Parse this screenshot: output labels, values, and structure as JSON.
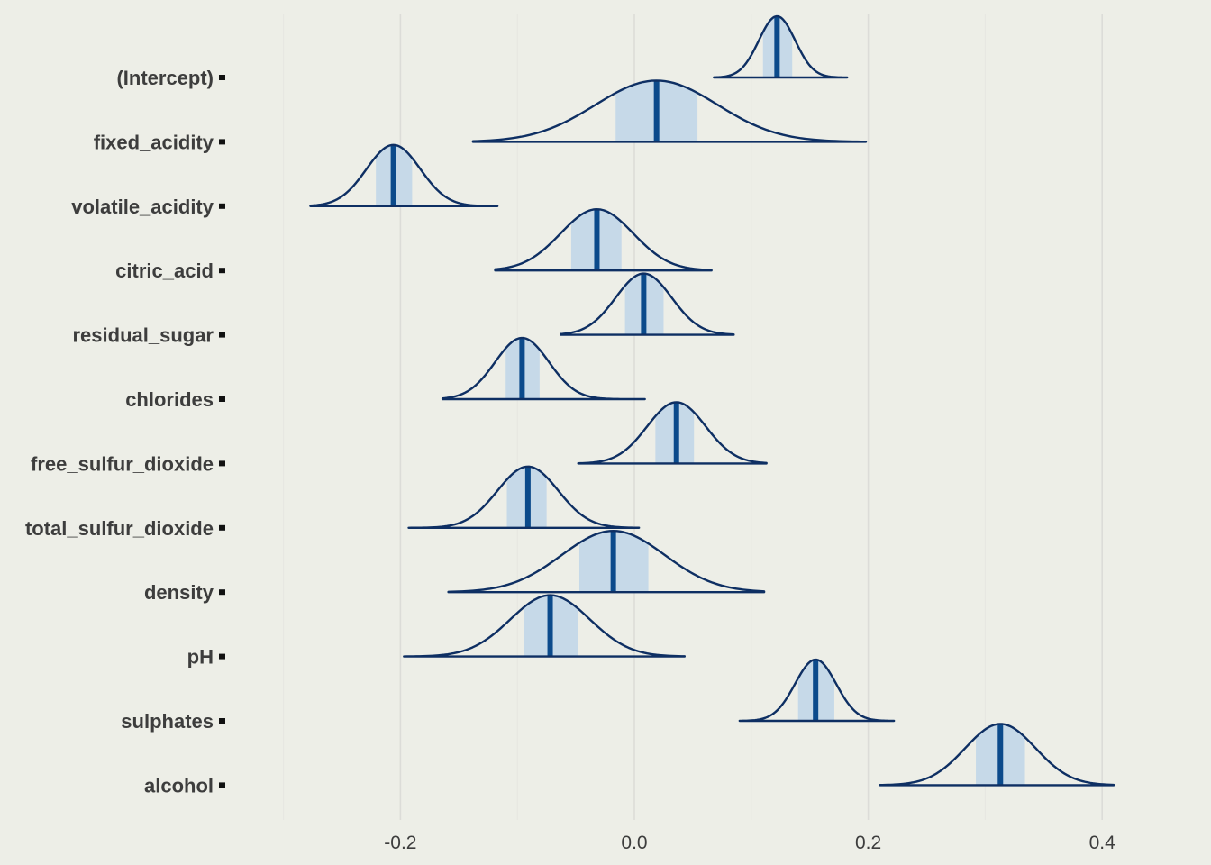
{
  "chart_data": {
    "type": "ridgeline",
    "title": "",
    "xlabel": "",
    "ylabel": "",
    "xlim": [
      -0.3,
      0.4
    ],
    "x_ticks": [
      -0.2,
      0.0,
      0.2,
      0.4
    ],
    "x_tick_labels": [
      "-0.2",
      "0.0",
      "0.2",
      "0.4"
    ],
    "grid": true,
    "legend": "none",
    "colors": {
      "background": "#edeee7",
      "grid_minor": "#e6e6e1",
      "grid_major": "#dcdcd8",
      "outline": "#0e2f63",
      "interval_fill": "#c6d9e8",
      "median": "#0b4a8b",
      "tick_mark": "#111111"
    },
    "series": [
      {
        "name": "(Intercept)",
        "min": 0.068,
        "max": 0.182,
        "q25": 0.11,
        "q75": 0.135,
        "median": 0.122,
        "sd": 0.0155
      },
      {
        "name": "fixed_acidity",
        "min": -0.138,
        "max": 0.198,
        "q25": -0.016,
        "q75": 0.054,
        "median": 0.019,
        "sd": 0.052
      },
      {
        "name": "volatile_acidity",
        "min": -0.277,
        "max": -0.117,
        "q25": -0.221,
        "q75": -0.19,
        "median": -0.206,
        "sd": 0.023
      },
      {
        "name": "citric_acid",
        "min": -0.119,
        "max": 0.066,
        "q25": -0.054,
        "q75": -0.011,
        "median": -0.032,
        "sd": 0.031
      },
      {
        "name": "residual_sugar",
        "min": -0.063,
        "max": 0.085,
        "q25": -0.008,
        "q75": 0.025,
        "median": 0.008,
        "sd": 0.024
      },
      {
        "name": "chlorides",
        "min": -0.164,
        "max": 0.009,
        "q25": -0.11,
        "q75": -0.081,
        "median": -0.096,
        "sd": 0.023
      },
      {
        "name": "free_sulfur_dioxide",
        "min": -0.048,
        "max": 0.113,
        "q25": 0.018,
        "q75": 0.051,
        "median": 0.036,
        "sd": 0.025
      },
      {
        "name": "total_sulfur_dioxide",
        "min": -0.193,
        "max": 0.004,
        "q25": -0.109,
        "q75": -0.075,
        "median": -0.091,
        "sd": 0.026
      },
      {
        "name": "density",
        "min": -0.159,
        "max": 0.111,
        "q25": -0.047,
        "q75": 0.012,
        "median": -0.018,
        "sd": 0.044
      },
      {
        "name": "pH",
        "min": -0.197,
        "max": 0.043,
        "q25": -0.094,
        "q75": -0.048,
        "median": -0.072,
        "sd": 0.034
      },
      {
        "name": "sulphates",
        "min": 0.09,
        "max": 0.222,
        "q25": 0.14,
        "q75": 0.171,
        "median": 0.155,
        "sd": 0.0175
      },
      {
        "name": "alcohol",
        "min": 0.21,
        "max": 0.41,
        "q25": 0.292,
        "q75": 0.334,
        "median": 0.313,
        "sd": 0.03
      }
    ]
  }
}
